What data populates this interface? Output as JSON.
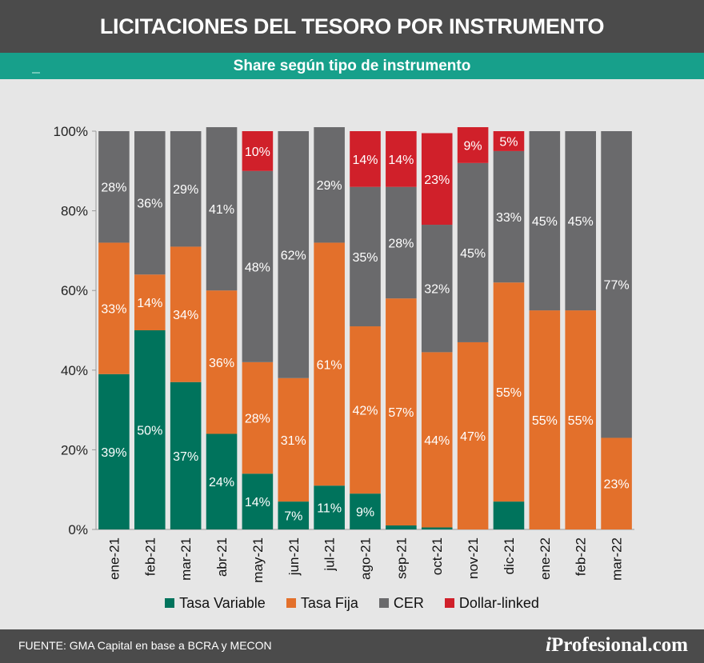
{
  "header": {
    "title": "LICITACIONES DEL TESORO POR INSTRUMENTO"
  },
  "subheader": {
    "title": "Share según tipo de instrumento"
  },
  "colors": {
    "Tasa Variable": "#00735c",
    "Tasa Fija": "#e3702b",
    "CER": "#6a6a6c",
    "Dollar-linked": "#d0202a"
  },
  "chart_data": {
    "type": "bar",
    "stacked": true,
    "categories": [
      "ene-21",
      "feb-21",
      "mar-21",
      "abr-21",
      "may-21",
      "jun-21",
      "jul-21",
      "ago-21",
      "sep-21",
      "oct-21",
      "nov-21",
      "dic-21",
      "ene-22",
      "feb-22",
      "mar-22"
    ],
    "series": [
      {
        "name": "Tasa Variable",
        "values": [
          39,
          50,
          37,
          24,
          14,
          7,
          11,
          9,
          1,
          0.5,
          0,
          7,
          0,
          0,
          0
        ],
        "labels": [
          "39%",
          "50%",
          "37%",
          "24%",
          "14%",
          "7%",
          "11%",
          "9%",
          "",
          "",
          "",
          "",
          "",
          "",
          ""
        ]
      },
      {
        "name": "Tasa Fija",
        "values": [
          33,
          14,
          34,
          36,
          28,
          31,
          61,
          42,
          57,
          44,
          47,
          55,
          55,
          55,
          23
        ],
        "labels": [
          "33%",
          "14%",
          "34%",
          "36%",
          "28%",
          "31%",
          "61%",
          "42%",
          "57%",
          "44%",
          "47%",
          "55%",
          "55%",
          "55%",
          "23%"
        ]
      },
      {
        "name": "CER",
        "values": [
          28,
          36,
          29,
          41,
          48,
          62,
          29,
          35,
          28,
          32,
          45,
          33,
          45,
          45,
          77
        ],
        "labels": [
          "28%",
          "36%",
          "29%",
          "41%",
          "48%",
          "62%",
          "29%",
          "35%",
          "28%",
          "32%",
          "45%",
          "33%",
          "45%",
          "45%",
          "77%"
        ]
      },
      {
        "name": "Dollar-linked",
        "values": [
          0,
          0,
          0,
          0,
          10,
          0,
          0,
          14,
          14,
          23,
          9,
          5,
          0,
          0,
          0
        ],
        "labels": [
          "",
          "",
          "",
          "",
          "10%",
          "",
          "",
          "14%",
          "14%",
          "23%",
          "9%",
          "5%",
          "",
          "",
          ""
        ]
      }
    ],
    "y_ticks": [
      "0%",
      "20%",
      "40%",
      "60%",
      "80%",
      "100%"
    ],
    "ylim": [
      0,
      100
    ],
    "grid": false,
    "legend_position": "bottom"
  },
  "footer": {
    "source": "FUENTE: GMA Capital en base a BCRA y MECON",
    "brand_i": "i",
    "brand_rest": "Profesional.com"
  }
}
